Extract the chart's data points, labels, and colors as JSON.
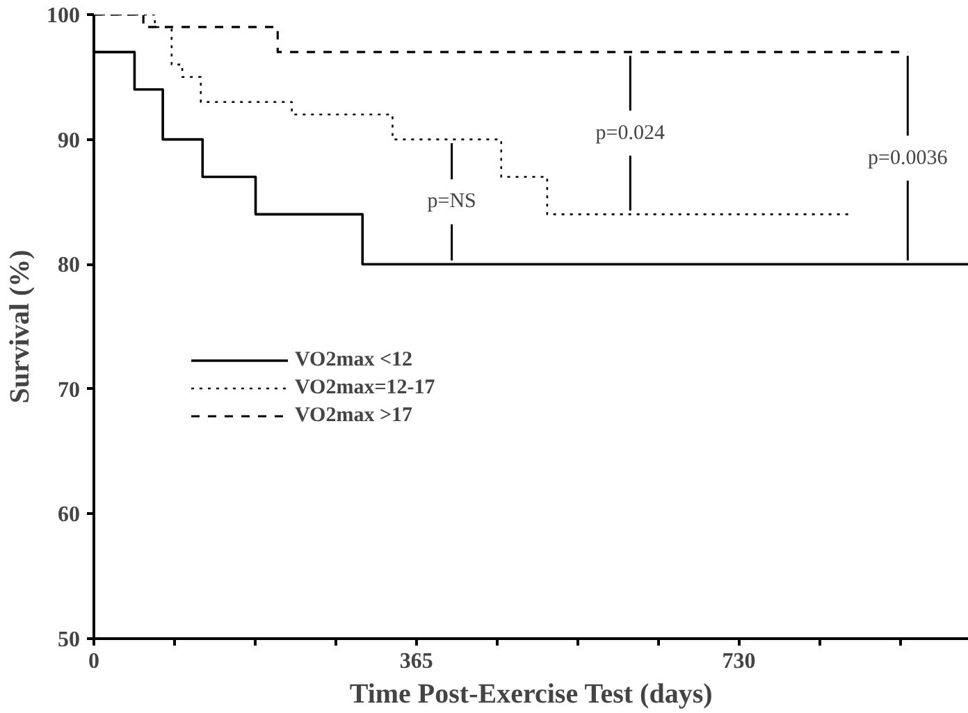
{
  "chart_data": {
    "type": "step",
    "xlabel": "Time Post-Exercise Test (days)",
    "ylabel": "Survival (%)",
    "xlim": [
      0,
      990
    ],
    "ylim": [
      50,
      100
    ],
    "xticks": [
      0,
      {
        "value": 91.25,
        "label": null
      },
      {
        "value": 182.5,
        "label": null
      },
      {
        "value": 273.75,
        "label": null
      },
      365,
      {
        "value": 456.25,
        "label": null
      },
      {
        "value": 547.5,
        "label": null
      },
      {
        "value": 638.75,
        "label": null
      },
      730,
      {
        "value": 821.25,
        "label": null
      },
      {
        "value": 912.5,
        "label": null
      }
    ],
    "yticks": [
      50,
      60,
      70,
      80,
      90,
      100
    ],
    "grid": false,
    "legend": "left",
    "series": [
      {
        "name": "VO2max <12",
        "color": "#000000",
        "line_style": "solid",
        "x": [
          0,
          46,
          78,
          123,
          183,
          304,
          990
        ],
        "values": [
          97,
          94,
          90,
          87,
          84,
          80,
          80
        ]
      },
      {
        "name": "VO2max=12-17",
        "color": "#000000",
        "line_style": "dotted",
        "x": [
          0,
          69,
          88,
          100,
          121,
          224,
          338,
          461,
          513,
          855
        ],
        "values": [
          100,
          99,
          96,
          95,
          93,
          92,
          90,
          87,
          84,
          84
        ]
      },
      {
        "name": "VO2max >17",
        "color": "#000000",
        "line_style": "dashed",
        "x": [
          0,
          56,
          208,
          921
        ],
        "values": [
          100,
          99,
          97,
          97
        ]
      }
    ],
    "annotations": [
      {
        "text": "p=NS",
        "x": 405,
        "y": 90
      },
      {
        "text": "p=0.024",
        "x": 607,
        "y": 97
      },
      {
        "text": "p=0.0036",
        "x": 921,
        "y": 97
      }
    ]
  }
}
